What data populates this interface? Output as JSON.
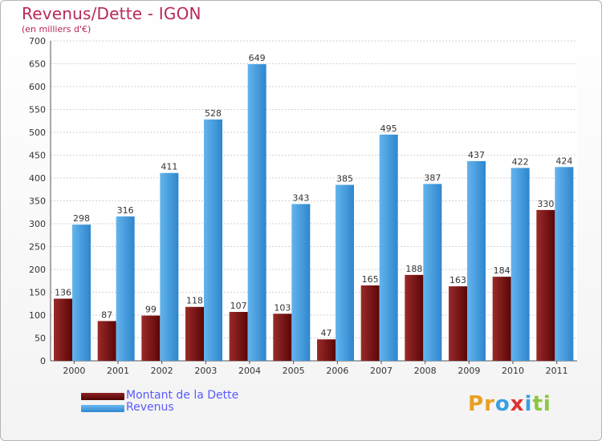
{
  "chart_data": {
    "type": "bar",
    "title": "Revenus/Dette - IGON",
    "subtitle": "(en milliers d'€)",
    "xlabel": "",
    "ylabel": "",
    "categories": [
      "2000",
      "2001",
      "2002",
      "2003",
      "2004",
      "2005",
      "2006",
      "2007",
      "2008",
      "2009",
      "2010",
      "2011"
    ],
    "series": [
      {
        "name": "Montant de la Dette",
        "color": "#7a1010",
        "values": [
          136,
          87,
          99,
          118,
          107,
          103,
          47,
          165,
          188,
          163,
          184,
          330
        ]
      },
      {
        "name": "Revenus",
        "color": "#4a9fe0",
        "values": [
          298,
          316,
          411,
          528,
          649,
          343,
          385,
          495,
          387,
          437,
          422,
          424
        ]
      }
    ],
    "ylim": [
      0,
      700
    ],
    "yticks": [
      0,
      50,
      100,
      150,
      200,
      250,
      300,
      350,
      400,
      450,
      500,
      550,
      600,
      650,
      700
    ],
    "grid": true,
    "legend": "bottom-left"
  },
  "logo": {
    "letters": [
      {
        "char": "P",
        "color": "#e8a020"
      },
      {
        "char": "r",
        "color": "#e8a020"
      },
      {
        "char": "o",
        "color": "#3aa0e0"
      },
      {
        "char": "x",
        "color": "#e03030"
      },
      {
        "char": "i",
        "color": "#3aa0e0"
      },
      {
        "char": "t",
        "color": "#8cc63f"
      },
      {
        "char": "i",
        "color": "#8cc63f"
      }
    ]
  }
}
